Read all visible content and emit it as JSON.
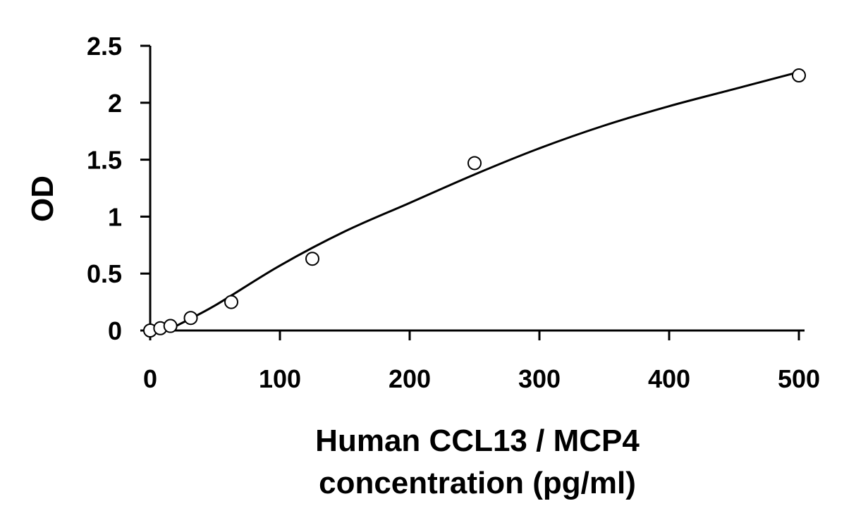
{
  "chart_data": {
    "type": "scatter",
    "title": "",
    "xlabel_lines": [
      "Human CCL13 / MCP4",
      "concentration (pg/ml)"
    ],
    "ylabel": "OD",
    "xlim": [
      0,
      500
    ],
    "ylim": [
      0,
      2.5
    ],
    "x_ticks": [
      0,
      100,
      200,
      300,
      400,
      500
    ],
    "y_ticks": [
      0,
      0.5,
      1,
      1.5,
      2,
      2.5
    ],
    "x_tick_labels": [
      "0",
      "100",
      "200",
      "300",
      "400",
      "500"
    ],
    "y_tick_labels": [
      "0",
      "0.5",
      "1",
      "1.5",
      "2",
      "2.5"
    ],
    "grid": false,
    "legend": "none",
    "series": [
      {
        "kind": "points",
        "marker": "open-circle",
        "x": [
          0,
          7.8,
          15.6,
          31.25,
          62.5,
          125,
          250,
          500
        ],
        "y": [
          0.0,
          0.02,
          0.04,
          0.11,
          0.25,
          0.63,
          1.47,
          2.24
        ]
      },
      {
        "kind": "fit-curve",
        "x": [
          20,
          50,
          100,
          150,
          200,
          250,
          300,
          350,
          400,
          450,
          500
        ],
        "y": [
          0.04,
          0.22,
          0.57,
          0.87,
          1.12,
          1.37,
          1.6,
          1.8,
          1.97,
          2.12,
          2.27
        ]
      }
    ],
    "colors": {
      "ink": "#000000",
      "marker_fill": "#ffffff",
      "background": "#ffffff"
    }
  }
}
